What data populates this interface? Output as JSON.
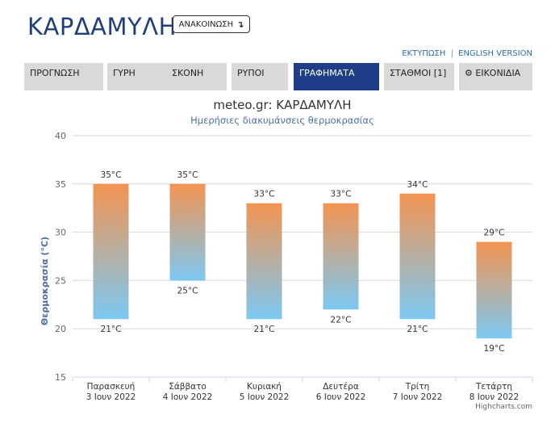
{
  "header": {
    "title": "ΚΑΡΔΑΜΥΛΗ",
    "announce_label": "ΑΝΑΚΟΙΝΩΣΗ",
    "announce_icon": "arrow-down-icon"
  },
  "links": {
    "print": "ΕΚΤΥΠΩΣΗ",
    "separator": "|",
    "english": "ENGLISH VERSION"
  },
  "tabs": [
    {
      "label": "ΠΡΟΓΝΩΣΗ"
    },
    {
      "label": "ΓΥΡΗ"
    },
    {
      "label": "ΣΚΟΝΗ"
    },
    {
      "label": "ΡΥΠΟΙ"
    },
    {
      "label": "ΓΡΑΦΗΜΑΤΑ",
      "active": true
    },
    {
      "label": "ΣΤΑΘΜΟΙ [1]"
    },
    {
      "label": "ΕΙΚΟΝΙΔΙΑ",
      "icon": "gear-icon"
    }
  ],
  "colors": {
    "title": "#1e3f7a",
    "tab_active": "#1e3f88",
    "tab": "#d9d9d9",
    "bar_top": "#f39451",
    "bar_bottom": "#7cc8f2"
  },
  "chart_data": {
    "type": "bar",
    "title": "meteo.gr: ΚΑΡΔΑΜΥΛΗ",
    "subtitle": "Ημερήσιες διακυμάνσεις θερμοκρασίας",
    "ylabel": "Θερμοκρασία (°C)",
    "ylim": [
      15,
      40
    ],
    "yticks": [
      15,
      20,
      25,
      30,
      35,
      40
    ],
    "grid": true,
    "categories": [
      {
        "day": "Παρασκευή",
        "date": "3 Ιουν 2022"
      },
      {
        "day": "Σάββατο",
        "date": "4 Ιουν 2022"
      },
      {
        "day": "Κυριακή",
        "date": "5 Ιουν 2022"
      },
      {
        "day": "Δευτέρα",
        "date": "6 Ιουν 2022"
      },
      {
        "day": "Τρίτη",
        "date": "7 Ιουν 2022"
      },
      {
        "day": "Τετάρτη",
        "date": "8 Ιουν 2022"
      }
    ],
    "series": [
      {
        "values": [
          [
            21,
            35
          ],
          [
            25,
            35
          ],
          [
            21,
            33
          ],
          [
            22,
            33
          ],
          [
            21,
            34
          ],
          [
            19,
            29
          ]
        ]
      }
    ],
    "value_labels": [
      [
        "21°C",
        "35°C"
      ],
      [
        "25°C",
        "35°C"
      ],
      [
        "21°C",
        "33°C"
      ],
      [
        "22°C",
        "33°C"
      ],
      [
        "21°C",
        "34°C"
      ],
      [
        "19°C",
        "29°C"
      ]
    ],
    "credits": "Highcharts.com"
  }
}
